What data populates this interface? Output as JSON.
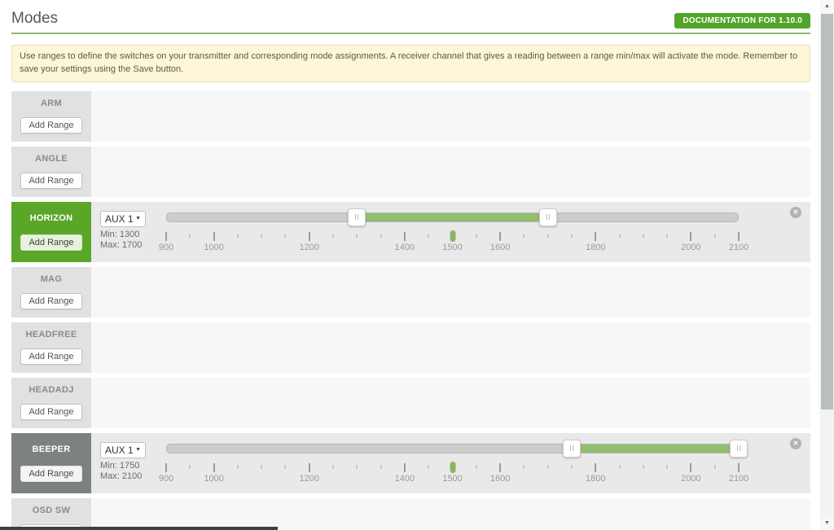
{
  "header": {
    "title": "Modes",
    "doc_button": "DOCUMENTATION FOR 1.10.0"
  },
  "note": {
    "text": "Use ranges to define the switches on your transmitter and corresponding mode assignments. A receiver channel that gives a reading between a range min/max will activate the mode. Remember to save your settings using the Save button."
  },
  "buttons": {
    "add_range": "Add Range"
  },
  "scale": {
    "min": 900,
    "max": 2100,
    "tick_step": 50,
    "labeled_ticks": [
      900,
      1000,
      1200,
      1400,
      1500,
      1600,
      1800,
      2000,
      2100
    ],
    "current_channel_value": 1500
  },
  "modes": [
    {
      "name": "ARM"
    },
    {
      "name": "ANGLE"
    },
    {
      "name": "HORIZON",
      "style": "green",
      "range": {
        "channel": "AUX 1",
        "min": 1300,
        "max": 1700,
        "min_label": "Min: 1300",
        "max_label": "Max: 1700"
      }
    },
    {
      "name": "MAG"
    },
    {
      "name": "HEADFREE"
    },
    {
      "name": "HEADADJ"
    },
    {
      "name": "BEEPER",
      "style": "gray",
      "range": {
        "channel": "AUX 1",
        "min": 1750,
        "max": 2100,
        "min_label": "Min: 1750",
        "max_label": "Max: 2100"
      }
    },
    {
      "name": "OSD SW"
    }
  ],
  "colors": {
    "accent_green": "#59aa29",
    "range_fill_green": "#92bf6e",
    "beeper_gray": "#7d8280",
    "note_yellow": "#fdf6d8"
  }
}
